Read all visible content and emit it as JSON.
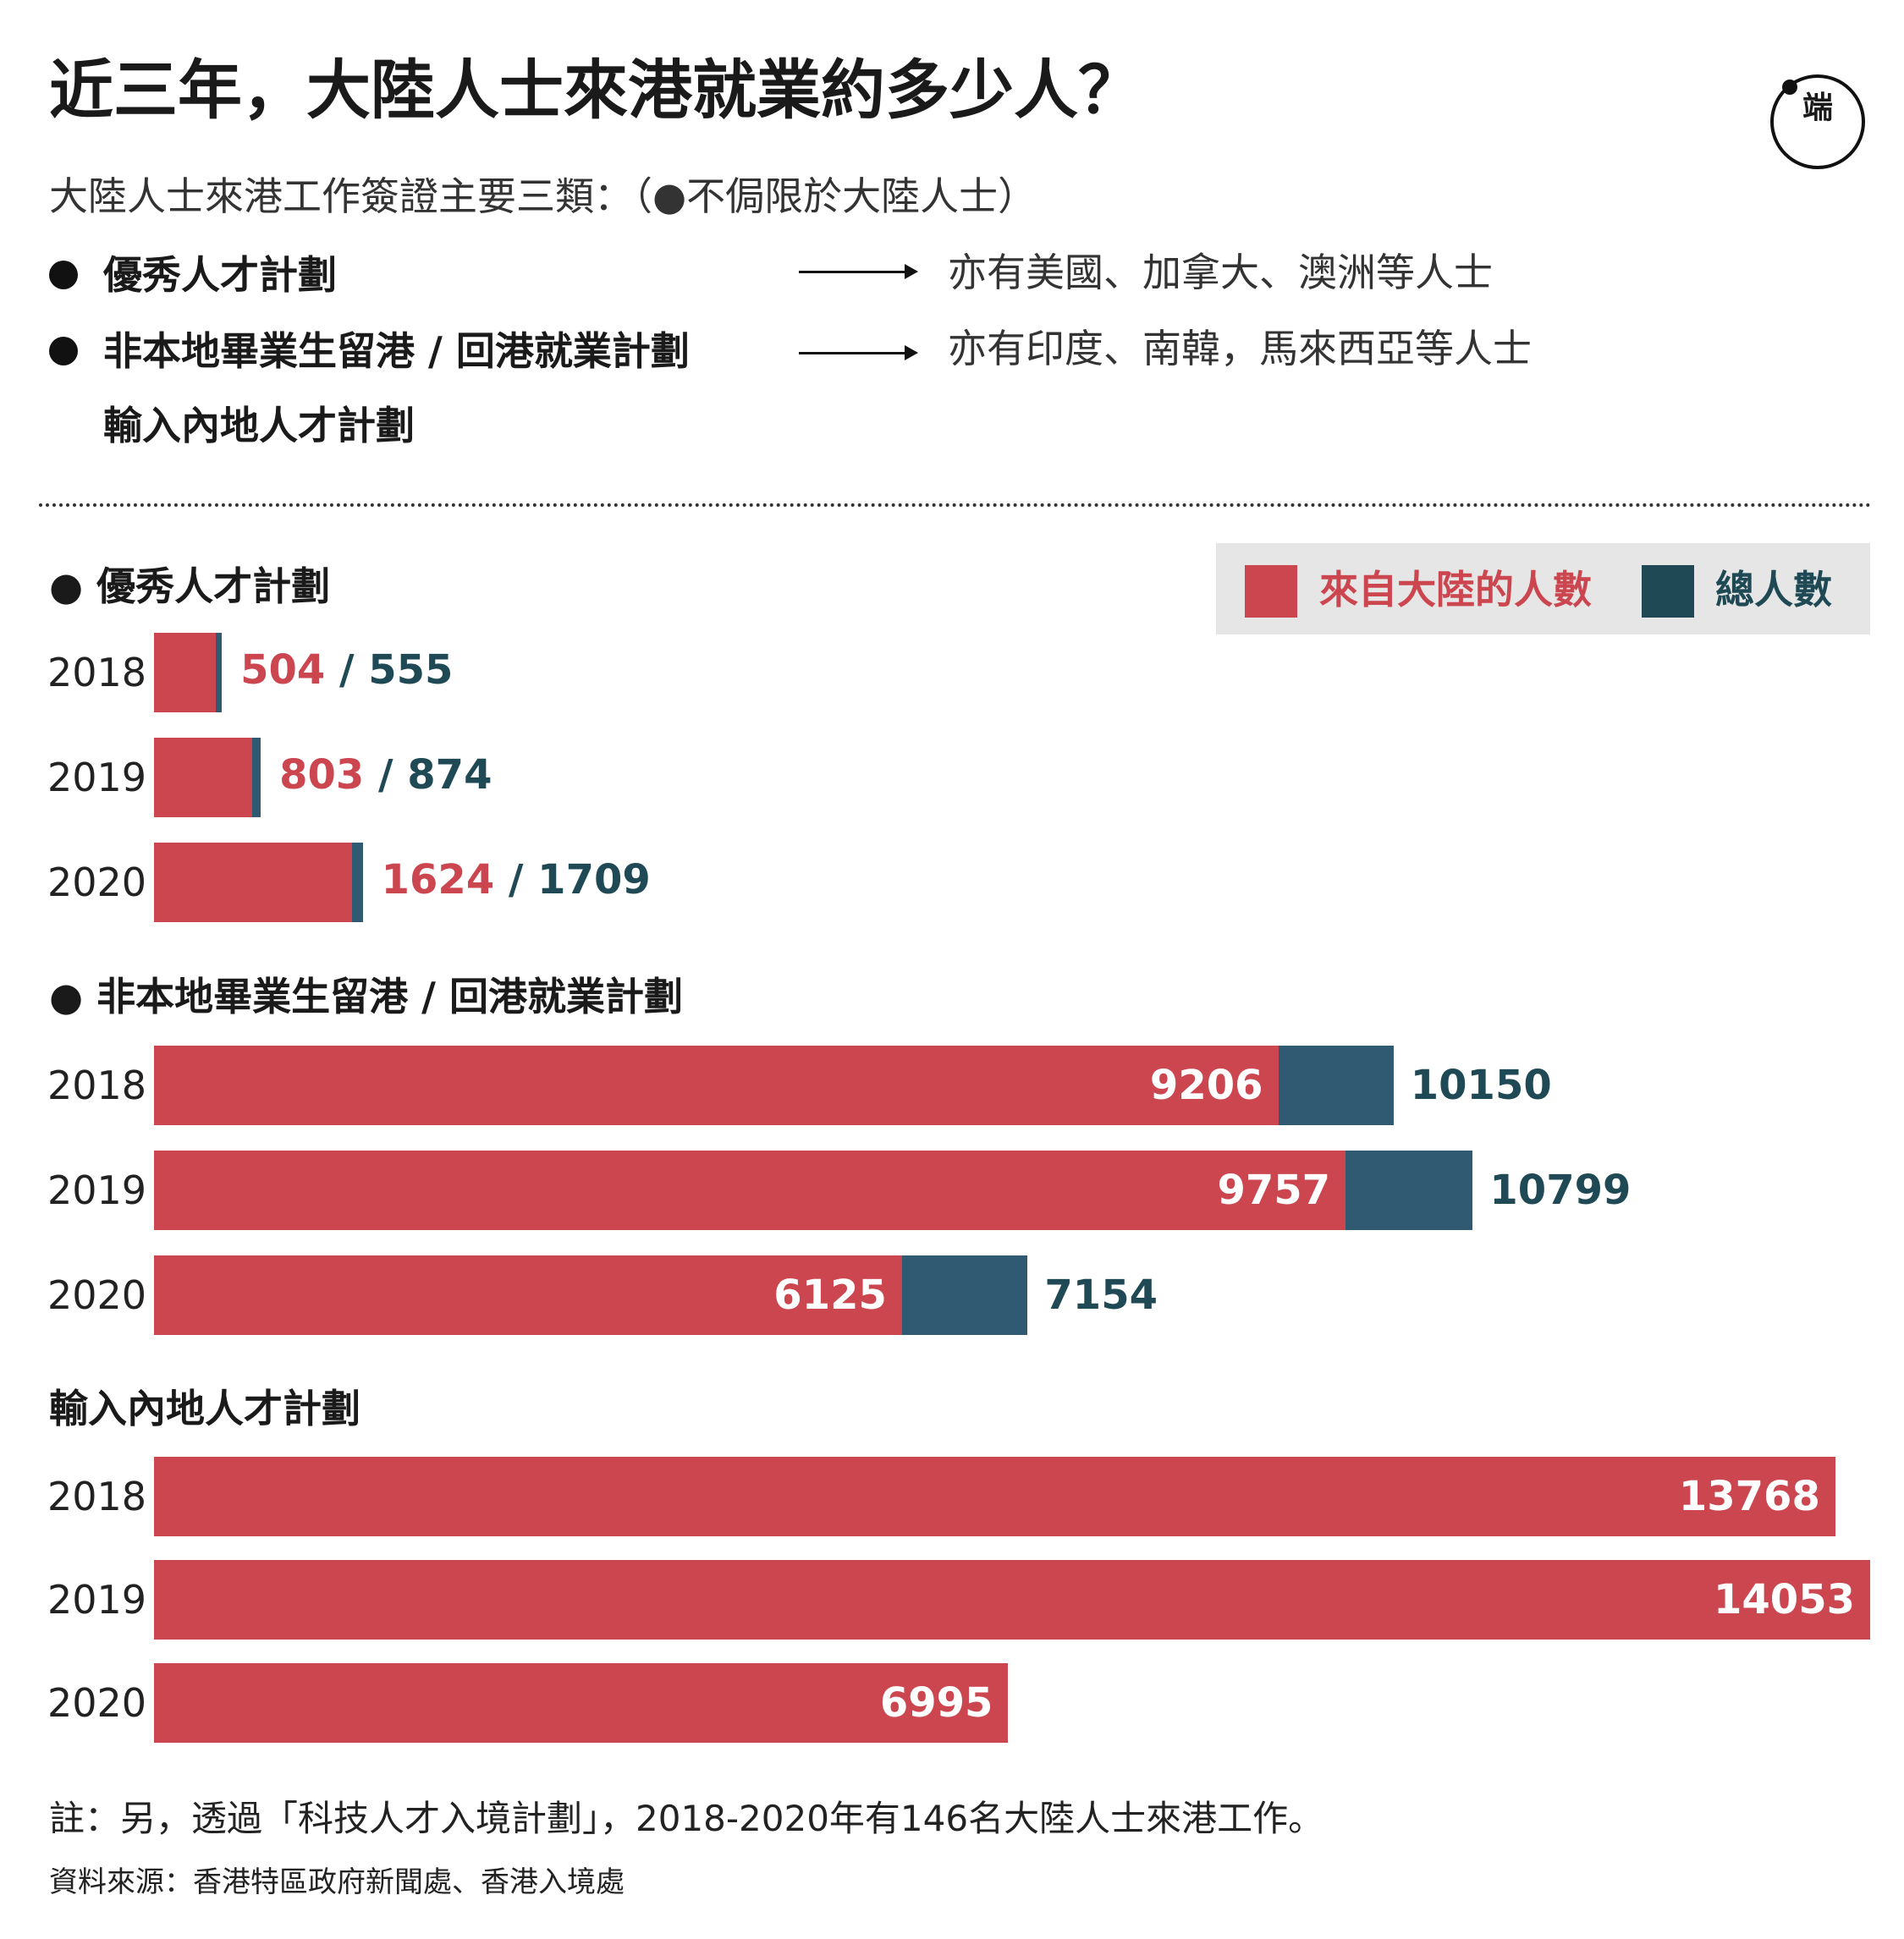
{
  "header": {
    "title": "近三年，大陸人士來港就業約多少人？",
    "logo": "端"
  },
  "intro": {
    "text": "大陸人士來港工作簽證主要三類：（●不侷限於大陸人士）",
    "schemes": [
      {
        "label": "優秀人才計劃",
        "marker": "●",
        "note": "亦有美國、加拿大、澳洲等人士"
      },
      {
        "label": "非本地畢業生留港 / 回港就業計劃",
        "marker": "●",
        "note": "亦有印度、南韓，馬來西亞等人士"
      },
      {
        "label": "輸入內地人才計劃",
        "marker": "",
        "note": ""
      }
    ]
  },
  "legend": {
    "mainland_label": "來自大陸的人數",
    "total_label": "總人數"
  },
  "colors": {
    "mainland": "#cc4650",
    "total": "#2f5a72",
    "total_text": "#1f4a55"
  },
  "chart_data": {
    "type": "bar",
    "orientation": "horizontal",
    "xlim": [
      0,
      14053
    ],
    "series": [
      {
        "name": "來自大陸的人數"
      },
      {
        "name": "總人數"
      }
    ],
    "groups": [
      {
        "title": "● 優秀人才計劃",
        "categories": [
          "2018",
          "2019",
          "2020"
        ],
        "mainland": [
          504,
          803,
          1624
        ],
        "total": [
          555,
          874,
          1709
        ],
        "labels": [
          "504 / 555",
          "803 / 874",
          "1624 / 1709"
        ]
      },
      {
        "title": "● 非本地畢業生留港 / 回港就業計劃",
        "categories": [
          "2018",
          "2019",
          "2020"
        ],
        "mainland": [
          9206,
          9757,
          6125
        ],
        "total": [
          10150,
          10799,
          7154
        ],
        "mainland_labels": [
          "9206",
          "9757",
          "6125"
        ],
        "total_labels": [
          "10150",
          "10799",
          "7154"
        ]
      },
      {
        "title": "輸入內地人才計劃",
        "categories": [
          "2018",
          "2019",
          "2020"
        ],
        "mainland": [
          13768,
          14053,
          6995
        ],
        "mainland_labels": [
          "13768",
          "14053",
          "6995"
        ]
      }
    ]
  },
  "footer": {
    "note": "註：另，透過「科技人才入境計劃」，2018-2020年有146名大陸人士來港工作。",
    "source": "資料來源：香港特區政府新聞處、香港入境處"
  }
}
